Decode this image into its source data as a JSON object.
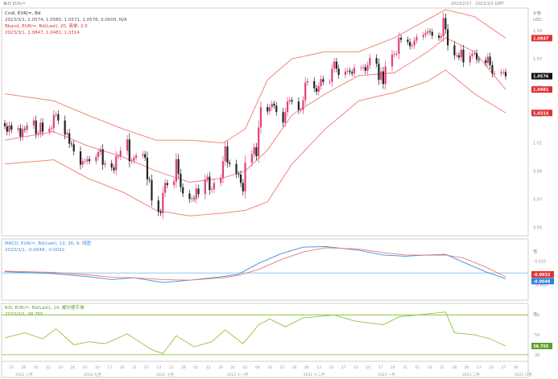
{
  "header": {
    "left_title": "每日 EUR/=",
    "right_stamp": "2023/2/17 · 2023/3/2 GMT"
  },
  "main_panel": {
    "title": "Cndl, EUR/=, Bd",
    "ohlc_line": "2023/3/1, 1.0574, 1.0580, 1.0571, 1.0576, 0.0000, N/A",
    "bband_title": "Bband, EUR/=, Bd(Last), 20, 简单, 2.0",
    "bband_values": "2023/3/1, 1.0847, 1.0481, 1.0314",
    "unit_labels": [
      "价格",
      "USD"
    ],
    "yticks": [
      {
        "v": 1.09,
        "t": "1.09"
      },
      {
        "v": 1.07,
        "t": "1.07"
      },
      {
        "v": 1.05,
        "t": "1.05"
      },
      {
        "v": 1.03,
        "t": "1.03"
      },
      {
        "v": 1.01,
        "t": "1.01"
      },
      {
        "v": 0.99,
        "t": "0.99"
      },
      {
        "v": 0.97,
        "t": "0.97"
      },
      {
        "v": 0.95,
        "t": "0.95"
      }
    ],
    "badges": [
      {
        "v": 1.0847,
        "t": "1.0847",
        "color": "#e03131"
      },
      {
        "v": 1.0576,
        "t": "1.0576",
        "color": "#111111"
      },
      {
        "v": 1.0481,
        "t": "1.0481",
        "color": "#e03131"
      },
      {
        "v": 1.0314,
        "t": "1.0314",
        "color": "#e03131"
      }
    ]
  },
  "macd_panel": {
    "title": "MACD, EUR/=, Bd(Last), 12, 26, 9, 线图",
    "values": "2023/3/1, -0.0048, -0.0032",
    "unit_label": "值",
    "yticks": [
      {
        "v": 0.01,
        "t": "0.010"
      },
      {
        "v": 0.0,
        "t": "0.000"
      },
      {
        "v": -0.01,
        "t": "-0.010"
      }
    ],
    "badges": [
      {
        "v": -0.0032,
        "t": "-0.0032",
        "color": "#e03131"
      },
      {
        "v": -0.0048,
        "t": "-0.0048",
        "color": "#2f7fdc"
      }
    ]
  },
  "rsi_panel": {
    "title": "RSI, EUR/=, Bd(Last), 14, 威尔德平滑",
    "values": "2023/3/1, 38.755",
    "unit_label": "值",
    "yticks": [
      {
        "v": 70,
        "t": "70"
      },
      {
        "v": 50,
        "t": "50"
      },
      {
        "v": 30,
        "t": "30"
      }
    ],
    "badge": {
      "v": 38.755,
      "t": "38.755",
      "color": "#5aa02c"
    }
  },
  "xaxis": {
    "day_ticks": [
      "22",
      "29",
      "05",
      "12",
      "19",
      "26",
      "03",
      "10",
      "17",
      "24",
      "31",
      "07",
      "14",
      "21",
      "28",
      "05",
      "12",
      "19",
      "26",
      "02",
      "09",
      "16",
      "23",
      "30",
      "06",
      "13",
      "20",
      "27",
      "03",
      "10",
      "17",
      "24",
      "31",
      "07",
      "14",
      "21",
      "28",
      "06",
      "13",
      "20",
      "27",
      "06"
    ],
    "month_labels": [
      "2022 八月",
      "2022 九月",
      "2022 十月",
      "2022 十一月",
      "2022 十二月",
      "2023 一月",
      "2023 二月",
      "2023 三月"
    ]
  },
  "colors": {
    "bull_candle": "#e0407e",
    "bear_candle": "#222222",
    "bollinger": "#f07a6a",
    "macd_line": "#3a8fe0",
    "signal_line": "#f07a6a",
    "zero_line": "#8fc6f0",
    "rsi_line": "#8cc63f",
    "rsi_bands": "#8cc63f"
  },
  "chart_data": [
    {
      "type": "candlestick",
      "title": "Cndl, EUR/=, Bd",
      "ylim": [
        0.945,
        1.105
      ],
      "x": [
        "2022-07-19",
        "2022-07-20",
        "2022-07-21",
        "2022-07-22",
        "2022-07-25",
        "2022-07-26",
        "2022-07-27",
        "2022-07-28",
        "2022-07-29",
        "2022-08-01",
        "2022-08-02",
        "2022-08-03",
        "2022-08-04",
        "2022-08-05",
        "2022-08-08",
        "2022-08-09",
        "2022-08-10",
        "2022-08-11",
        "2022-08-12",
        "2022-08-15",
        "2022-08-16",
        "2022-08-17",
        "2022-08-18",
        "2022-08-19",
        "2022-08-22",
        "2022-08-23",
        "2022-08-24",
        "2022-08-25",
        "2022-08-26",
        "2022-08-29",
        "2022-08-30",
        "2022-08-31",
        "2022-09-01",
        "2022-09-02",
        "2022-09-05",
        "2022-09-06",
        "2022-09-07",
        "2022-09-08",
        "2022-09-09",
        "2022-09-12",
        "2022-09-13",
        "2022-09-14",
        "2022-09-15",
        "2022-09-16",
        "2022-09-19",
        "2022-09-20",
        "2022-09-21",
        "2022-09-22",
        "2022-09-23",
        "2022-09-26",
        "2022-09-27",
        "2022-09-28",
        "2022-09-29",
        "2022-09-30",
        "2022-10-03",
        "2022-10-04",
        "2022-10-05",
        "2022-10-06",
        "2022-10-07",
        "2022-10-10",
        "2022-10-11",
        "2022-10-12",
        "2022-10-13",
        "2022-10-14",
        "2022-10-17",
        "2022-10-18",
        "2022-10-19",
        "2022-10-20",
        "2022-10-21",
        "2022-10-24",
        "2022-10-25",
        "2022-10-26",
        "2022-10-27",
        "2022-10-28",
        "2022-10-31",
        "2022-11-01",
        "2022-11-02",
        "2022-11-03",
        "2022-11-04",
        "2022-11-07",
        "2022-11-08",
        "2022-11-09",
        "2022-11-10",
        "2022-11-11",
        "2022-11-14",
        "2022-11-15",
        "2022-11-16",
        "2022-11-17",
        "2022-11-18",
        "2022-11-21",
        "2022-11-22",
        "2022-11-23",
        "2022-11-24",
        "2022-11-25",
        "2022-11-28",
        "2022-11-29",
        "2022-11-30",
        "2022-12-01",
        "2022-12-02",
        "2022-12-05",
        "2022-12-06",
        "2022-12-07",
        "2022-12-08",
        "2022-12-09",
        "2022-12-12",
        "2022-12-13",
        "2022-12-14",
        "2022-12-15",
        "2022-12-16",
        "2022-12-19",
        "2022-12-20",
        "2022-12-21",
        "2022-12-22",
        "2022-12-23",
        "2022-12-26",
        "2022-12-27",
        "2022-12-28",
        "2022-12-29",
        "2022-12-30",
        "2023-01-02",
        "2023-01-03",
        "2023-01-04",
        "2023-01-05",
        "2023-01-06",
        "2023-01-09",
        "2023-01-10",
        "2023-01-11",
        "2023-01-12",
        "2023-01-13",
        "2023-01-16",
        "2023-01-17",
        "2023-01-18",
        "2023-01-19",
        "2023-01-20",
        "2023-01-23",
        "2023-01-24",
        "2023-01-25",
        "2023-01-26",
        "2023-01-27",
        "2023-01-30",
        "2023-01-31",
        "2023-02-01",
        "2023-02-02",
        "2023-02-03",
        "2023-02-06",
        "2023-02-07",
        "2023-02-08",
        "2023-02-09",
        "2023-02-10",
        "2023-02-13",
        "2023-02-14",
        "2023-02-15",
        "2023-02-16",
        "2023-02-17",
        "2023-02-20",
        "2023-02-21",
        "2023-02-22",
        "2023-02-23",
        "2023-02-24",
        "2023-02-27",
        "2023-02-28",
        "2023-03-01"
      ],
      "close": [
        1.022,
        1.018,
        1.0225,
        1.0195,
        1.0205,
        1.0145,
        1.02,
        1.0195,
        1.0225,
        1.026,
        1.0165,
        1.017,
        1.0245,
        1.018,
        1.02,
        1.0205,
        1.03,
        1.0305,
        1.026,
        1.016,
        1.017,
        1.0095,
        1.009,
        1.004,
        0.9945,
        0.997,
        0.997,
        0.9985,
        0.997,
        1.0,
        1.0035,
        1.0055,
        0.9945,
        0.9955,
        0.9925,
        0.9905,
        1.0005,
        1.0005,
        1.0045,
        1.0125,
        0.997,
        0.9975,
        0.9995,
        1.001,
        1.002,
        0.9995,
        0.984,
        0.9835,
        0.969,
        0.961,
        0.96,
        0.9745,
        0.9815,
        0.98,
        0.9825,
        0.9985,
        0.988,
        0.9785,
        0.974,
        0.97,
        0.9705,
        0.97,
        0.9775,
        0.9735,
        0.984,
        0.986,
        0.9765,
        0.977,
        0.9815,
        0.985,
        0.997,
        1.0075,
        0.996,
        0.995,
        0.988,
        0.9875,
        0.9815,
        0.9755,
        0.996,
        1.002,
        1.007,
        1.0005,
        1.021,
        1.0355,
        1.0325,
        1.0355,
        1.038,
        1.0365,
        1.032,
        1.0245,
        1.032,
        1.0395,
        1.0405,
        1.0395,
        1.0335,
        1.0335,
        1.0405,
        1.053,
        1.054,
        1.049,
        1.0465,
        1.0505,
        1.0555,
        1.0535,
        1.0535,
        1.063,
        1.068,
        1.063,
        1.0585,
        1.061,
        1.0615,
        1.0605,
        1.0595,
        1.0635,
        1.0635,
        1.064,
        1.0615,
        1.0655,
        1.0705,
        1.0665,
        1.055,
        1.061,
        1.052,
        1.0645,
        1.073,
        1.0735,
        1.0735,
        1.085,
        1.0835,
        1.082,
        1.079,
        1.0795,
        1.083,
        1.0855,
        1.087,
        1.0885,
        1.0895,
        1.089,
        1.0865,
        1.085,
        1.086,
        1.099,
        1.091,
        1.0795,
        1.0725,
        1.0725,
        1.071,
        1.0765,
        1.0675,
        1.072,
        1.0735,
        1.074,
        1.0695,
        1.069,
        1.067,
        1.0715,
        1.0655,
        1.0595,
        1.0595,
        1.0605,
        1.0605,
        1.0576
      ]
    },
    {
      "type": "line",
      "title": "Bband, EUR/=, Bd(Last), 20, 简单, 2.0",
      "series": [
        {
          "name": "",
          "points": [
            [
              "2022-07-19",
              1.045
            ],
            [
              "2022-08-10",
              1.04
            ],
            [
              "2022-08-25",
              1.03
            ],
            [
              "2022-09-10",
              1.02
            ],
            [
              "2022-09-25",
              1.012
            ],
            [
              "2022-10-10",
              1.012
            ],
            [
              "2022-10-25",
              1.01
            ],
            [
              "2022-11-04",
              1.02
            ],
            [
              "2022-11-14",
              1.055
            ],
            [
              "2022-11-25",
              1.07
            ],
            [
              "2022-12-10",
              1.075
            ],
            [
              "2022-12-25",
              1.075
            ],
            [
              "2023-01-10",
              1.085
            ],
            [
              "2023-01-25",
              1.098
            ],
            [
              "2023-02-02",
              1.105
            ],
            [
              "2023-02-15",
              1.1
            ],
            [
              "2023-03-01",
              1.0847
            ]
          ]
        },
        {
          "name": "",
          "points": [
            [
              "2022-07-19",
              1.012
            ],
            [
              "2022-08-10",
              1.018
            ],
            [
              "2022-08-25",
              1.008
            ],
            [
              "2022-09-10",
              1.0
            ],
            [
              "2022-09-25",
              0.99
            ],
            [
              "2022-10-10",
              0.982
            ],
            [
              "2022-10-25",
              0.985
            ],
            [
              "2022-11-04",
              0.99
            ],
            [
              "2022-11-14",
              1.005
            ],
            [
              "2022-11-25",
              1.03
            ],
            [
              "2022-12-10",
              1.045
            ],
            [
              "2022-12-25",
              1.058
            ],
            [
              "2023-01-10",
              1.06
            ],
            [
              "2023-01-25",
              1.075
            ],
            [
              "2023-02-02",
              1.085
            ],
            [
              "2023-02-15",
              1.075
            ],
            [
              "2023-03-01",
              1.0481
            ]
          ]
        },
        {
          "name": "",
          "points": [
            [
              "2022-07-19",
              0.995
            ],
            [
              "2022-08-10",
              0.998
            ],
            [
              "2022-08-25",
              0.985
            ],
            [
              "2022-09-10",
              0.975
            ],
            [
              "2022-09-25",
              0.962
            ],
            [
              "2022-10-10",
              0.958
            ],
            [
              "2022-10-25",
              0.96
            ],
            [
              "2022-11-04",
              0.962
            ],
            [
              "2022-11-14",
              0.968
            ],
            [
              "2022-11-25",
              0.995
            ],
            [
              "2022-12-10",
              1.02
            ],
            [
              "2022-12-25",
              1.04
            ],
            [
              "2023-01-10",
              1.046
            ],
            [
              "2023-01-25",
              1.054
            ],
            [
              "2023-02-02",
              1.062
            ],
            [
              "2023-02-15",
              1.045
            ],
            [
              "2023-03-01",
              1.0314
            ]
          ]
        }
      ]
    },
    {
      "type": "line",
      "title": "MACD, EUR/=, Bd(Last), 12, 26, 9, 线图",
      "ylim": [
        -0.022,
        0.027
      ],
      "series": [
        {
          "name": "",
          "points": [
            [
              "2022-07-19",
              0.001
            ],
            [
              "2022-08-10",
              -0.0005
            ],
            [
              "2022-08-25",
              -0.003
            ],
            [
              "2022-09-05",
              -0.0055
            ],
            [
              "2022-09-15",
              -0.004
            ],
            [
              "2022-09-28",
              -0.008
            ],
            [
              "2022-10-10",
              -0.006
            ],
            [
              "2022-10-25",
              -0.003
            ],
            [
              "2022-11-01",
              -0.001
            ],
            [
              "2022-11-10",
              0.008
            ],
            [
              "2022-11-20",
              0.016
            ],
            [
              "2022-11-30",
              0.0215
            ],
            [
              "2022-12-10",
              0.022
            ],
            [
              "2022-12-25",
              0.019
            ],
            [
              "2023-01-05",
              0.015
            ],
            [
              "2023-01-15",
              0.014
            ],
            [
              "2023-01-25",
              0.015
            ],
            [
              "2023-02-02",
              0.0155
            ],
            [
              "2023-02-10",
              0.009
            ],
            [
              "2023-02-20",
              0.001
            ],
            [
              "2023-03-01",
              -0.0048
            ]
          ]
        },
        {
          "name": "",
          "points": [
            [
              "2022-07-19",
              0.0015
            ],
            [
              "2022-08-10",
              0.0005
            ],
            [
              "2022-08-25",
              -0.0015
            ],
            [
              "2022-09-05",
              -0.0035
            ],
            [
              "2022-09-15",
              -0.004
            ],
            [
              "2022-09-28",
              -0.0055
            ],
            [
              "2022-10-10",
              -0.006
            ],
            [
              "2022-10-25",
              -0.004
            ],
            [
              "2022-11-01",
              -0.002
            ],
            [
              "2022-11-10",
              0.003
            ],
            [
              "2022-11-20",
              0.011
            ],
            [
              "2022-11-30",
              0.0175
            ],
            [
              "2022-12-10",
              0.021
            ],
            [
              "2022-12-25",
              0.02
            ],
            [
              "2023-01-05",
              0.017
            ],
            [
              "2023-01-15",
              0.015
            ],
            [
              "2023-01-25",
              0.0148
            ],
            [
              "2023-02-02",
              0.015
            ],
            [
              "2023-02-10",
              0.0125
            ],
            [
              "2023-02-20",
              0.005
            ],
            [
              "2023-03-01",
              -0.0032
            ]
          ]
        }
      ]
    },
    {
      "type": "line",
      "title": "RSI, EUR/=, Bd(Last), 14, 威尔德平滑",
      "ylim": [
        25,
        80
      ],
      "series": [
        {
          "name": "",
          "points": [
            [
              "2022-07-19",
              47
            ],
            [
              "2022-07-28",
              52
            ],
            [
              "2022-08-05",
              46
            ],
            [
              "2022-08-11",
              56
            ],
            [
              "2022-08-19",
              40
            ],
            [
              "2022-08-26",
              43
            ],
            [
              "2022-09-02",
              41
            ],
            [
              "2022-09-12",
              51
            ],
            [
              "2022-09-23",
              35
            ],
            [
              "2022-09-28",
              31
            ],
            [
              "2022-10-04",
              49
            ],
            [
              "2022-10-12",
              38
            ],
            [
              "2022-10-20",
              43
            ],
            [
              "2022-10-26",
              55
            ],
            [
              "2022-11-03",
              41
            ],
            [
              "2022-11-10",
              60
            ],
            [
              "2022-11-15",
              66
            ],
            [
              "2022-11-22",
              58
            ],
            [
              "2022-11-30",
              67
            ],
            [
              "2022-12-14",
              70
            ],
            [
              "2022-12-23",
              64
            ],
            [
              "2023-01-05",
              60
            ],
            [
              "2023-01-12",
              68
            ],
            [
              "2023-01-25",
              71
            ],
            [
              "2023-02-02",
              73
            ],
            [
              "2023-02-06",
              52
            ],
            [
              "2023-02-15",
              50
            ],
            [
              "2023-02-22",
              46
            ],
            [
              "2023-03-01",
              38.755
            ]
          ]
        }
      ]
    }
  ]
}
